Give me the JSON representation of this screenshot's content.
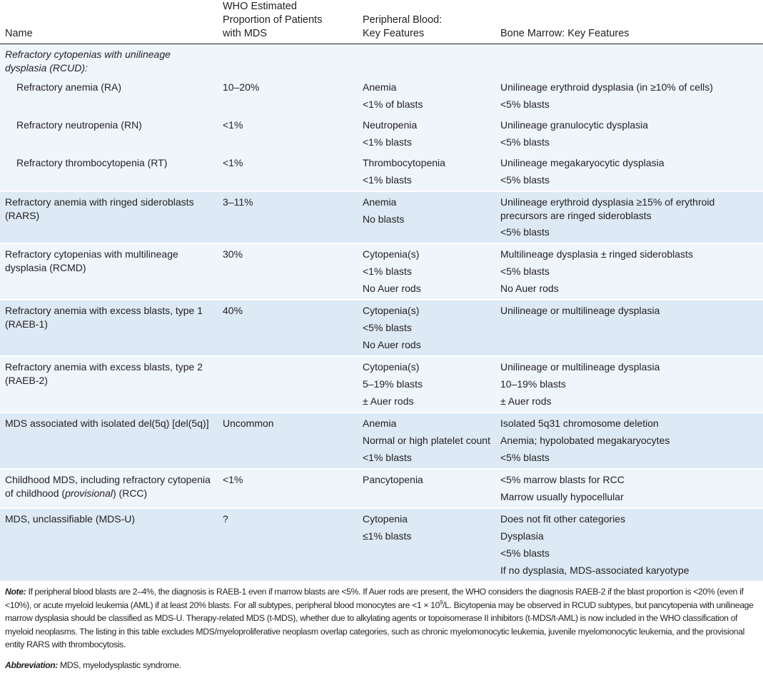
{
  "header": {
    "col_name": "Name",
    "col_who": [
      "WHO Estimated",
      "Proportion of Patients",
      "with MDS"
    ],
    "col_pb": [
      "Peripheral Blood:",
      "Key Features"
    ],
    "col_bm": "Bone Marrow: Key Features"
  },
  "group": {
    "title": "Refractory cytopenias with unilineage dysplasia (RCUD):",
    "rows": [
      {
        "name": "Refractory anemia (RA)",
        "who": "10–20%",
        "pb": [
          "Anemia",
          "<1% of blasts"
        ],
        "bm": [
          "Unilineage erythroid dysplasia (in ≥10% of cells)",
          "<5% blasts"
        ]
      },
      {
        "name": "Refractory neutropenia (RN)",
        "who": "<1%",
        "pb": [
          "Neutropenia",
          "<1% blasts"
        ],
        "bm": [
          "Unilineage granulocytic dysplasia",
          "<5% blasts"
        ]
      },
      {
        "name": "Refractory thrombocytopenia (RT)",
        "who": "<1%",
        "pb": [
          "Thrombocytopenia",
          "<1% blasts"
        ],
        "bm": [
          "Unilineage megakaryocytic dysplasia",
          "<5% blasts"
        ]
      }
    ]
  },
  "rows": [
    {
      "name": "Refractory anemia with ringed sideroblasts (RARS)",
      "who": "3–11%",
      "pb": [
        "Anemia",
        "No blasts"
      ],
      "bm": [
        "Unilineage erythroid dysplasia ≥15% of erythroid precursors are ringed sideroblasts",
        "<5% blasts"
      ],
      "shade": "dark"
    },
    {
      "name": "Refractory cytopenias with multilineage dysplasia (RCMD)",
      "who": "30%",
      "pb": [
        "Cytopenia(s)",
        "<1% blasts",
        "No Auer rods"
      ],
      "bm": [
        "Multilineage dysplasia ± ringed sideroblasts",
        "<5% blasts",
        "No Auer rods"
      ],
      "shade": "light"
    },
    {
      "name": "Refractory anemia with excess blasts, type 1 (RAEB-1)",
      "who": "40%",
      "pb": [
        "Cytopenia(s)",
        "<5% blasts",
        "No Auer rods"
      ],
      "bm": [
        "Unilineage or multilineage dysplasia"
      ],
      "shade": "dark"
    },
    {
      "name": "Refractory anemia with excess blasts, type 2 (RAEB-2)",
      "who": "",
      "pb": [
        "Cytopenia(s)",
        "5–19% blasts",
        "± Auer rods"
      ],
      "bm": [
        "Unilineage or multilineage dysplasia",
        "10–19% blasts",
        "± Auer rods"
      ],
      "shade": "light"
    },
    {
      "name": "MDS associated with isolated del(5q) [del(5q)]",
      "who": "Uncommon",
      "pb": [
        "Anemia",
        "Normal or high platelet count",
        "<1% blasts"
      ],
      "bm": [
        "Isolated 5q31 chromosome deletion",
        "Anemia; hypolobated megakaryocytes",
        "<5% blasts"
      ],
      "shade": "dark"
    },
    {
      "name_parts": [
        "Childhood MDS, including refractory cytopenia of childhood (",
        "provisional",
        ") (RCC)"
      ],
      "who": "<1%",
      "pb": [
        "Pancytopenia"
      ],
      "bm": [
        "<5% marrow blasts for RCC",
        "Marrow usually hypocellular"
      ],
      "shade": "light"
    },
    {
      "name": "MDS, unclassifiable (MDS-U)",
      "who": "?",
      "pb": [
        "Cytopenia",
        "≤1% blasts"
      ],
      "bm": [
        "Does not fit other categories",
        "Dysplasia",
        "<5% blasts",
        "If no dysplasia, MDS-associated karyotype"
      ],
      "shade": "dark"
    }
  ],
  "note": {
    "label": "Note:",
    "text_before": " If peripheral blood blasts are 2–4%, the diagnosis is RAEB-1 even if marrow blasts are <5%. If Auer rods are present, the WHO considers the diagnosis RAEB-2 if the blast proportion is <20% (even if <10%), or acute myeloid leukemia (AML) if at least 20% blasts. For all subtypes, peripheral blood monocytes are <1 × 10",
    "sup": "9",
    "text_after": "/L. Bicytopenia may be observed in RCUD subtypes, but pancytopenia with unilineage marrow dysplasia should be classified as MDS-U. Therapy-related MDS (t-MDS), whether due to alkylating agents or topoisomerase II inhibitors (t-MDS/t-AML) is now included in the WHO classification of myeloid neoplasms. The listing in this table excludes MDS/myeloproliferative neoplasm overlap categories, such as chronic myelomonocytic leukemia, juvenile myelomonocytic leukemia, and the provisional entity RARS with thrombocytosis."
  },
  "abbreviation": {
    "label": "Abbreviation:",
    "text": " MDS, myelodysplastic syndrome."
  },
  "colors": {
    "row_light": "#eef5fb",
    "row_dark": "#dde9f4",
    "text": "#231f20"
  }
}
